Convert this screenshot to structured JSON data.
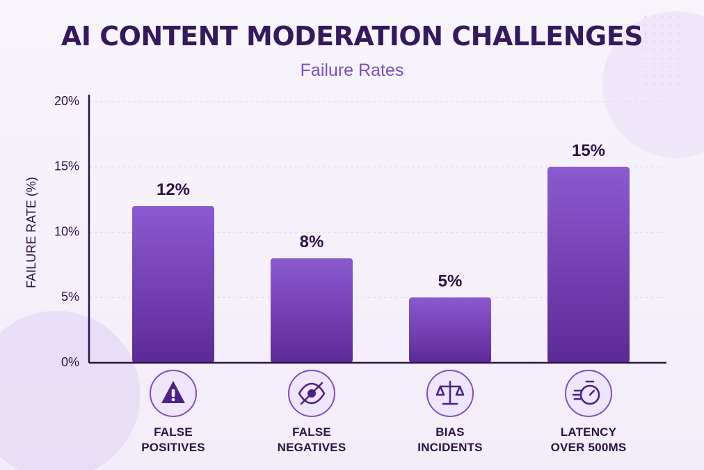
{
  "chart_data": {
    "type": "bar",
    "title": "AI CONTENT MODERATION CHALLENGES",
    "subtitle": "Failure Rates",
    "ylabel": "FAILURE RATE (%)",
    "yticks": [
      "0%",
      "5%",
      "10%",
      "15%",
      "20%"
    ],
    "ylim": [
      0,
      20
    ],
    "grid": true,
    "categories": [
      [
        "FALSE",
        "POSITIVES"
      ],
      [
        "FALSE",
        "NEGATIVES"
      ],
      [
        "BIAS",
        "INCIDENTS"
      ],
      [
        "LATENCY",
        "OVER 500MS"
      ]
    ],
    "values": [
      12,
      8,
      5,
      15
    ],
    "value_labels": [
      "12%",
      "8%",
      "5%",
      "15%"
    ],
    "icons": [
      "warning-icon",
      "eye-off-icon",
      "scales-icon",
      "stopwatch-icon"
    ],
    "bar_color_top": "#8c5ad0",
    "bar_color_bottom": "#5c2a97",
    "text_color": "#2b1245",
    "accent_color": "#7c4fc2"
  }
}
